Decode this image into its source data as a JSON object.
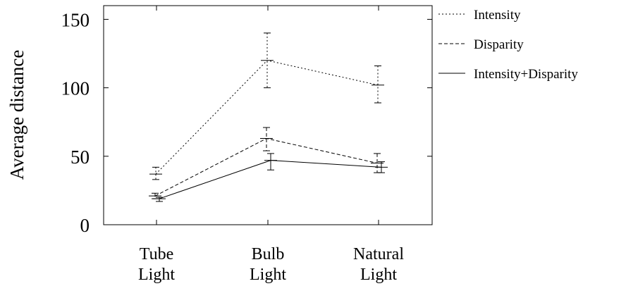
{
  "chart_data": {
    "type": "line",
    "categories": [
      [
        "Tube",
        "Light"
      ],
      [
        "Bulb",
        "Light"
      ],
      [
        "Natural",
        "Light"
      ]
    ],
    "ylabel": "Average distance",
    "ylim": [
      0,
      160
    ],
    "yticks": [
      0,
      50,
      100,
      150
    ],
    "grid": false,
    "legend_position": "outside-right",
    "series": [
      {
        "name": "Intensity",
        "style": "dotted",
        "values": [
          37,
          120,
          102
        ],
        "error_low": [
          33,
          100,
          89
        ],
        "error_high": [
          42,
          140,
          116
        ]
      },
      {
        "name": "Disparity",
        "style": "dashed",
        "values": [
          21,
          63,
          45
        ],
        "error_low": [
          19,
          54,
          38
        ],
        "error_high": [
          23,
          71,
          52
        ]
      },
      {
        "name": "Intensity+Disparity",
        "style": "solid",
        "values": [
          19,
          47,
          42
        ],
        "error_low": [
          17,
          40,
          38
        ],
        "error_high": [
          20,
          52,
          46
        ]
      }
    ]
  }
}
